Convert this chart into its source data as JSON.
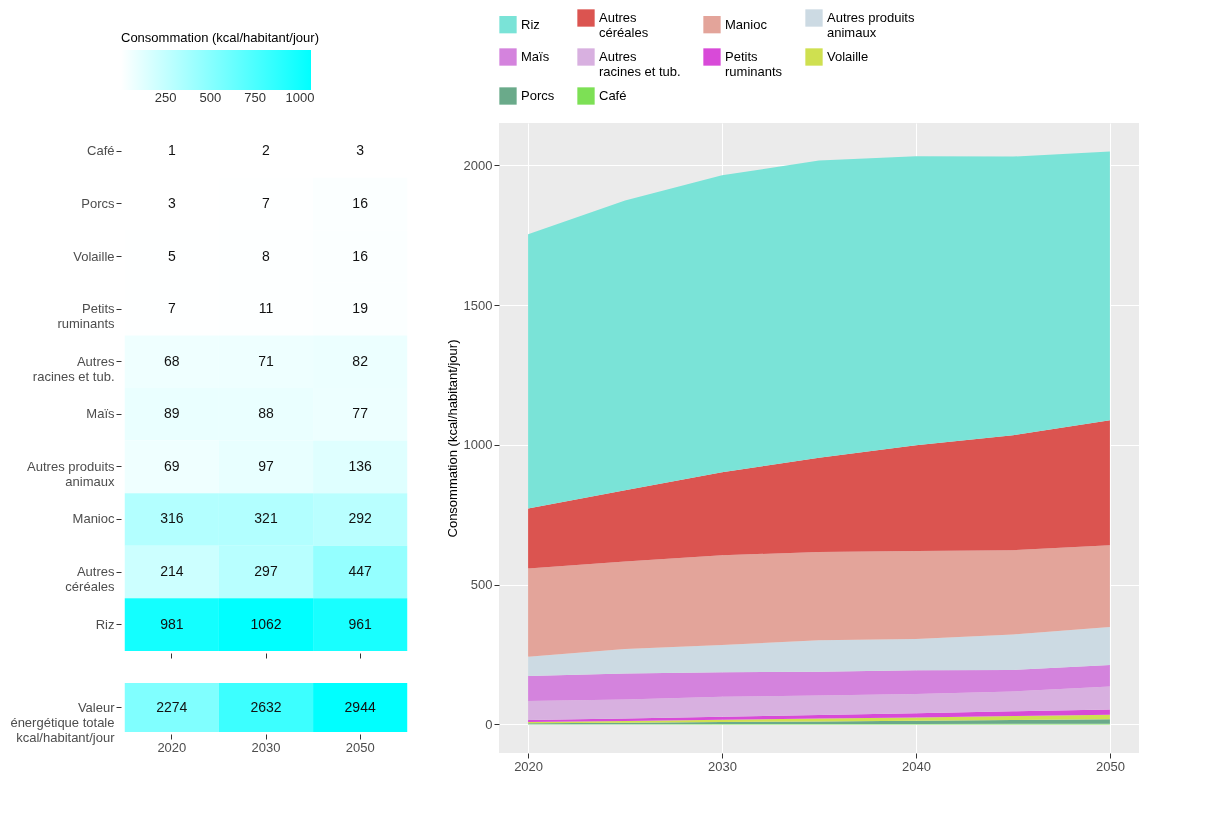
{
  "chart_data": [
    {
      "type": "heatmap",
      "categories": [
        "2020",
        "2030",
        "2050"
      ],
      "y_categories": [
        "Café",
        "Porcs",
        "Volaille",
        "Petits\nruminants",
        "Autres\nracines et tub.",
        "Maïs",
        "Autres produits\nanimaux",
        "Manioc",
        "Autres\ncéréales",
        "Riz"
      ],
      "cells": [
        [
          1,
          2,
          3
        ],
        [
          3,
          7,
          16
        ],
        [
          5,
          8,
          16
        ],
        [
          7,
          11,
          19
        ],
        [
          68,
          71,
          82
        ],
        [
          89,
          88,
          77
        ],
        [
          69,
          97,
          136
        ],
        [
          316,
          321,
          292
        ],
        [
          214,
          297,
          447
        ],
        [
          981,
          1062,
          961
        ]
      ],
      "clabel": "Consommation (kcal/habitant/jour)",
      "clim": [
        1,
        1062
      ],
      "cticks": [
        250,
        500,
        750,
        1000
      ],
      "data_labels": true,
      "tick_labels": "y"
    },
    {
      "type": "heatmap",
      "categories": [
        "2020",
        "2030",
        "2050"
      ],
      "y_categories": [
        "Valeur\nénergétique totale\nkcal/habitant/jour"
      ],
      "cells": [
        [
          2274,
          2632,
          2944
        ]
      ],
      "data_labels": true
    },
    {
      "type": "area",
      "stacked": true,
      "ylabel": "Consommation (kcal/habitant/jour)",
      "x": [
        2020,
        2025,
        2030,
        2035,
        2040,
        2045,
        2050
      ],
      "xlim": [
        2018.5,
        2051.5
      ],
      "xticks": [
        2020,
        2030,
        2040,
        2050
      ],
      "ylim": [
        -102,
        2151
      ],
      "yticks": [
        0,
        500,
        1000,
        1500,
        2000
      ],
      "grid": true,
      "legend": "top",
      "series": [
        {
          "name": "Café",
          "color": "#7de055",
          "values": [
            1,
            1,
            2,
            2,
            2,
            3,
            3
          ]
        },
        {
          "name": "Porcs",
          "color": "#6aaa8a",
          "values": [
            3,
            5,
            7,
            9,
            11,
            13,
            16
          ]
        },
        {
          "name": "Volaille",
          "color": "#cfe050",
          "values": [
            5,
            6,
            8,
            10,
            12,
            14,
            16
          ]
        },
        {
          "name": "Petits\nruminants",
          "color": "#d84ad8",
          "values": [
            7,
            9,
            11,
            13,
            15,
            17,
            19
          ]
        },
        {
          "name": "Autres\nracines et tub.",
          "color": "#d8b0e0",
          "values": [
            68,
            68,
            71,
            70,
            69,
            71,
            82
          ]
        },
        {
          "name": "Maïs",
          "color": "#d483dd",
          "values": [
            89,
            93,
            88,
            85,
            85,
            77,
            77
          ]
        },
        {
          "name": "Autres produits\nanimaux",
          "color": "#ccdae3",
          "values": [
            69,
            88,
            97,
            112,
            112,
            127,
            136
          ]
        },
        {
          "name": "Manioc",
          "color": "#e3a49a",
          "values": [
            316,
            313,
            321,
            316,
            314,
            301,
            292
          ]
        },
        {
          "name": "Autres\ncéréales",
          "color": "#db5450",
          "values": [
            214,
            255,
            297,
            337,
            379,
            411,
            447
          ]
        },
        {
          "name": "Riz",
          "color": "#7ae3d7",
          "values": [
            981,
            1036,
            1062,
            1063,
            1033,
            997,
            961
          ]
        }
      ]
    }
  ]
}
